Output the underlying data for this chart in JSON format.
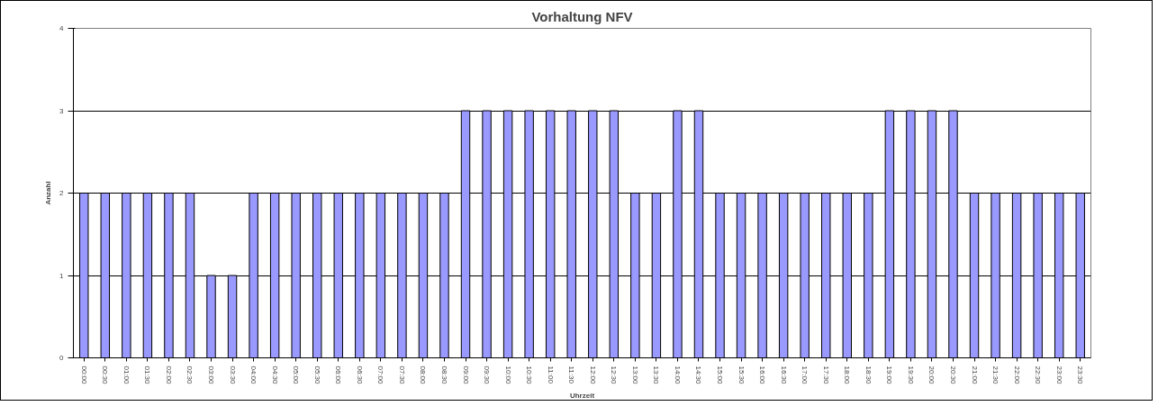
{
  "chart_data": {
    "type": "bar",
    "title": "Vorhaltung NFV",
    "xlabel": "Uhrzeit",
    "ylabel": "Anzahl",
    "categories": [
      "00:00",
      "00:30",
      "01:00",
      "01:30",
      "02:00",
      "02:30",
      "03:00",
      "03:30",
      "04:00",
      "04:30",
      "05:00",
      "05:30",
      "06:00",
      "06:30",
      "07:00",
      "07:30",
      "08:00",
      "08:30",
      "09:00",
      "09:30",
      "10:00",
      "10:30",
      "11:00",
      "11:30",
      "12:00",
      "12:30",
      "13:00",
      "13:30",
      "14:00",
      "14:30",
      "15:00",
      "15:30",
      "16:00",
      "16:30",
      "17:00",
      "17:30",
      "18:00",
      "18:30",
      "19:00",
      "19:30",
      "20:00",
      "20:30",
      "21:00",
      "21:30",
      "22:00",
      "22:30",
      "23:00",
      "23:30"
    ],
    "values": [
      2,
      2,
      2,
      2,
      2,
      2,
      1,
      1,
      2,
      2,
      2,
      2,
      2,
      2,
      2,
      2,
      2,
      2,
      3,
      3,
      3,
      3,
      3,
      3,
      3,
      3,
      2,
      2,
      3,
      3,
      2,
      2,
      2,
      2,
      2,
      2,
      2,
      2,
      3,
      3,
      3,
      3,
      2,
      2,
      2,
      2,
      2,
      2
    ],
    "color": "#9999ff",
    "ylim": [
      0,
      4
    ],
    "yticks": [
      0,
      1,
      2,
      3,
      4
    ],
    "grid": "y"
  }
}
